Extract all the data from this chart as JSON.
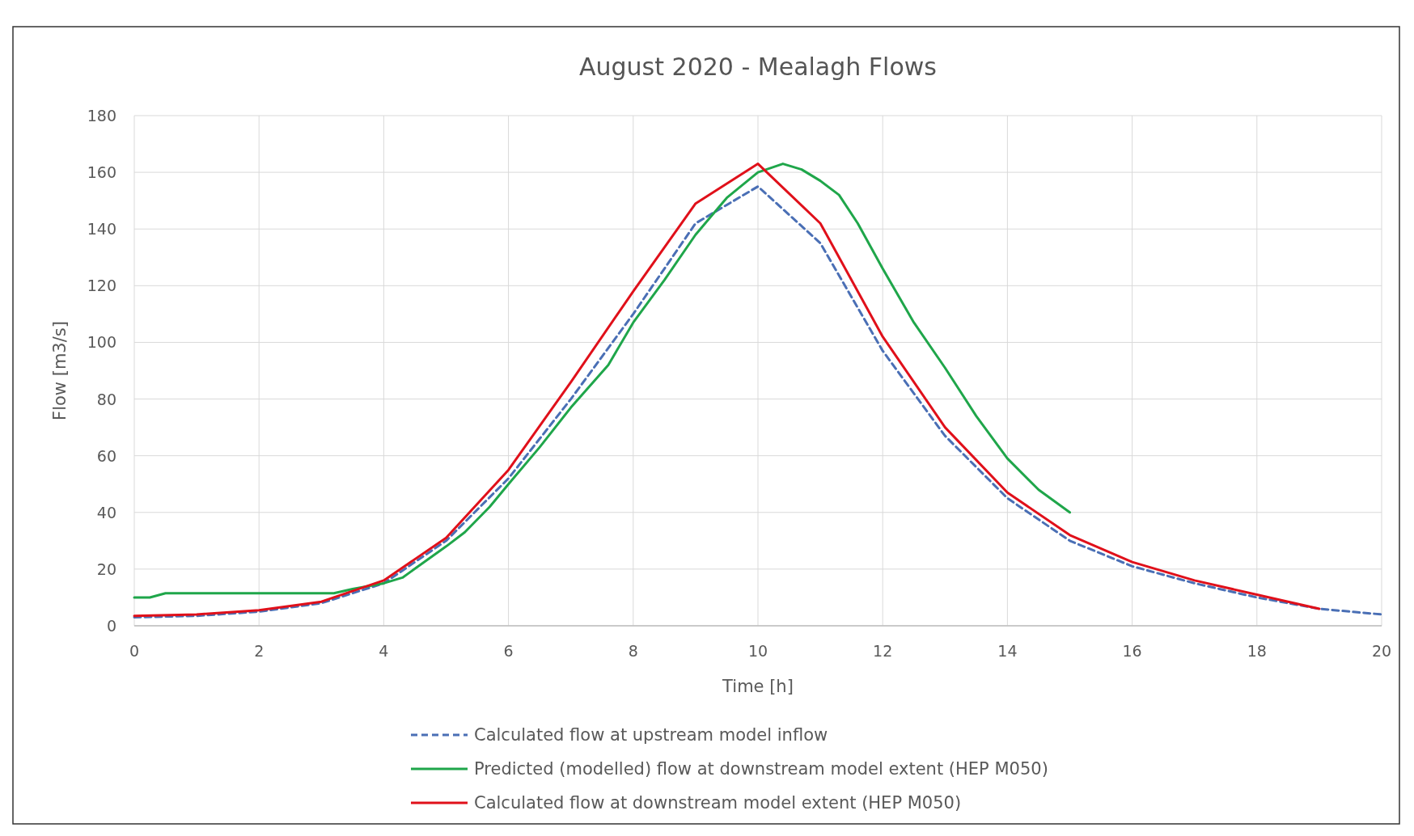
{
  "chart_data": {
    "type": "line",
    "title": "August 2020 - Mealagh Flows",
    "xlabel": "Time [h]",
    "ylabel": "Flow [m3/s]",
    "xlim": [
      0,
      20
    ],
    "xticks": [
      0,
      2,
      4,
      6,
      8,
      10,
      12,
      14,
      16,
      18,
      20
    ],
    "ylim": [
      0,
      180
    ],
    "yticks": [
      0,
      20,
      40,
      60,
      80,
      100,
      120,
      140,
      160,
      180
    ],
    "grid": true,
    "legend": "bottom",
    "series": [
      {
        "name": "Calculated flow at upstream model inflow",
        "color": "#4a6fb5",
        "line_style": "dashed",
        "x": [
          0,
          1,
          2,
          3,
          4,
          5,
          6,
          7,
          8,
          9,
          10,
          11,
          12,
          13,
          14,
          15,
          16,
          17,
          18,
          19,
          20
        ],
        "values": [
          3,
          3.5,
          5,
          8,
          15,
          30,
          52,
          80,
          110,
          142,
          155,
          135,
          97,
          67,
          45,
          30,
          21,
          15,
          10,
          6,
          4
        ]
      },
      {
        "name": "Predicted (modelled) flow at downstream model extent (HEP M050)",
        "color": "#1fa64a",
        "line_style": "solid",
        "x": [
          0,
          0.25,
          0.5,
          3.2,
          3.5,
          4,
          4.3,
          5,
          5.3,
          5.7,
          6,
          6.5,
          7,
          7.6,
          8,
          8.5,
          9,
          9.5,
          10,
          10.4,
          10.7,
          11,
          11.3,
          11.6,
          12,
          12.5,
          13,
          13.5,
          14,
          14.5,
          15
        ],
        "values": [
          10,
          10,
          11.5,
          11.5,
          13,
          15,
          17,
          28,
          33,
          42,
          50,
          63,
          77,
          92,
          107,
          122,
          138,
          151,
          160,
          163,
          161,
          157,
          152,
          142,
          126,
          107,
          91,
          74,
          59,
          48,
          40
        ]
      },
      {
        "name": "Calculated flow at downstream model extent (HEP M050)",
        "color": "#e0101a",
        "line_style": "solid",
        "x": [
          0,
          1,
          2,
          3,
          4,
          5,
          6,
          7,
          8,
          9,
          10,
          11,
          12,
          13,
          14,
          15,
          16,
          17,
          18,
          19
        ],
        "values": [
          3.5,
          4,
          5.5,
          8.5,
          16,
          31,
          55,
          86,
          118,
          149,
          163,
          142,
          102,
          70,
          47,
          32,
          22.5,
          16,
          11,
          6
        ]
      }
    ]
  }
}
